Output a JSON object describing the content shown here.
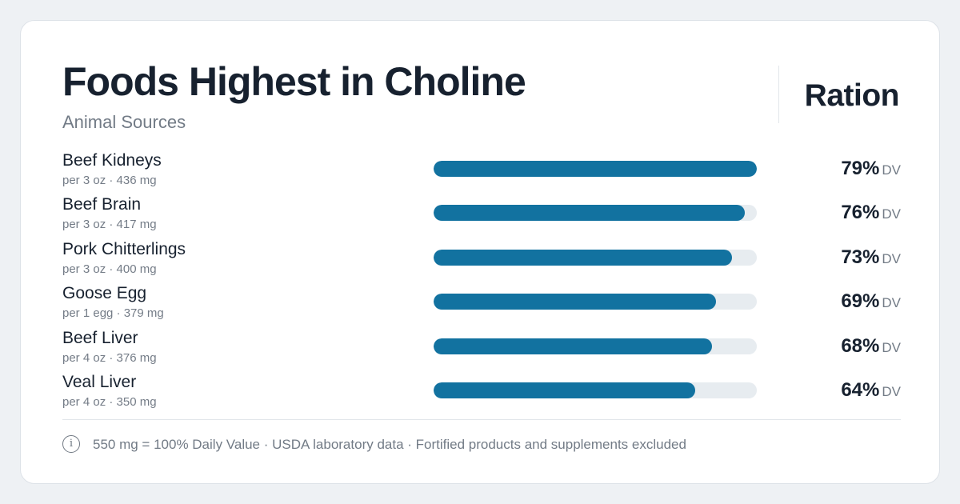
{
  "brand": "Ration",
  "footnote": "550 mg = 100% Daily Value · USDA laboratory data · Fortified products and supplements excluded",
  "icons": {
    "info": "info-icon"
  },
  "colors": {
    "background": "#eef1f4",
    "bar_fill": "#1272a0",
    "bar_track": "#e7ecf0",
    "text_primary": "#17212f",
    "text_secondary": "#727b86"
  },
  "chart_data": {
    "type": "bar",
    "orientation": "horizontal",
    "title": "Foods Highest in Choline",
    "subtitle": "Animal Sources",
    "value_unit": "DV",
    "xlim": [
      0,
      79
    ],
    "grid": false,
    "legend": "none",
    "categories": [
      "Beef Kidneys",
      "Beef Brain",
      "Pork Chitterlings",
      "Goose Egg",
      "Beef Liver",
      "Veal Liver"
    ],
    "details": [
      "per 3 oz · 436 mg",
      "per 3 oz · 417 mg",
      "per 3 oz · 400 mg",
      "per 1 egg · 379 mg",
      "per 4 oz · 376 mg",
      "per 4 oz · 350 mg"
    ],
    "values": [
      79,
      76,
      73,
      69,
      68,
      64
    ],
    "value_labels": [
      "79%",
      "76%",
      "73%",
      "69%",
      "68%",
      "64%"
    ]
  }
}
